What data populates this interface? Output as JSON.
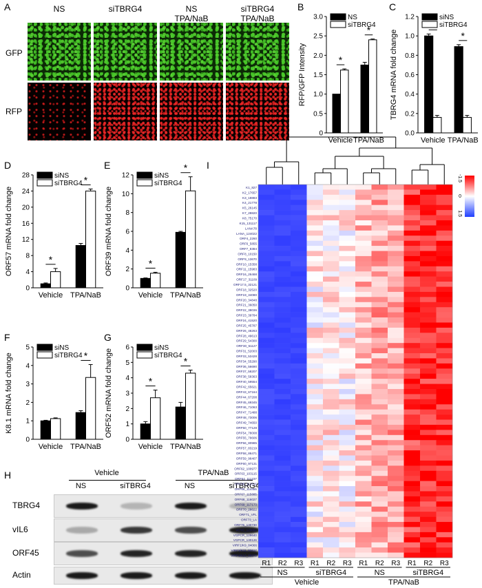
{
  "panels": {
    "A": "A",
    "B": "B",
    "C": "C",
    "D": "D",
    "E": "E",
    "F": "F",
    "G": "G",
    "H": "H",
    "I": "I"
  },
  "panel_a": {
    "columns": [
      "NS",
      "siTBRG4",
      "NS\nTPA/NaB",
      "siTBRG4\nTPA/NaB"
    ],
    "rows": [
      "GFP",
      "RFP"
    ]
  },
  "chart_data": [
    {
      "id": "B",
      "type": "bar",
      "categories": [
        "Vehicle",
        "TPA/NaB"
      ],
      "ylabel": "RFP/GFP Intensity",
      "ylim": [
        0,
        3.0
      ],
      "yticks": [
        0,
        0.5,
        1.0,
        1.5,
        2.0,
        2.5,
        3.0
      ],
      "ytick_labels": [
        "0",
        "0.5",
        "1.0",
        "1.5",
        "2.0",
        "2.5",
        "3.0"
      ],
      "legend": "top-left",
      "series": [
        {
          "name": "NS",
          "color": "#000000",
          "values": [
            1.0,
            1.75
          ],
          "errors": [
            0,
            0.07
          ]
        },
        {
          "name": "siTBRG4",
          "color": "#ffffff",
          "values": [
            1.62,
            2.4
          ],
          "errors": [
            0.03,
            0.02
          ]
        }
      ],
      "sig": [
        "*",
        "*"
      ]
    },
    {
      "id": "C",
      "type": "bar",
      "categories": [
        "Vehicle",
        "TPA/NaB"
      ],
      "ylabel": "TBRG4 mRNA fold change",
      "ylim": [
        0,
        1.2
      ],
      "yticks": [
        0,
        0.2,
        0.4,
        0.6,
        0.8,
        1.0,
        1.2
      ],
      "ytick_labels": [
        "0.0",
        "0.2",
        "0.4",
        "0.6",
        "0.8",
        "1.0",
        "1.2"
      ],
      "legend": "top-left",
      "series": [
        {
          "name": "siNS",
          "color": "#000000",
          "values": [
            1.0,
            0.89
          ],
          "errors": [
            0.02,
            0.02
          ]
        },
        {
          "name": "siTBRG4",
          "color": "#ffffff",
          "values": [
            0.16,
            0.16
          ],
          "errors": [
            0.02,
            0.02
          ]
        }
      ],
      "sig": [
        "*",
        "*"
      ]
    },
    {
      "id": "D",
      "type": "bar",
      "categories": [
        "Vehicle",
        "TPA/NaB"
      ],
      "ylabel": "ORF57 mRNA fold change",
      "ylim": [
        0,
        28
      ],
      "yticks": [
        0,
        4,
        8,
        12,
        16,
        20,
        24,
        28
      ],
      "ytick_labels": [
        "0",
        "4",
        "8",
        "12",
        "16",
        "20",
        "24",
        "28"
      ],
      "legend": "top-left",
      "series": [
        {
          "name": "siNS",
          "color": "#000000",
          "values": [
            1.0,
            10.5
          ],
          "errors": [
            0.2,
            0.5
          ]
        },
        {
          "name": "siTBRG4",
          "color": "#ffffff",
          "values": [
            4.0,
            24.0
          ],
          "errors": [
            0.8,
            0.5
          ]
        }
      ],
      "sig": [
        "*",
        "*"
      ]
    },
    {
      "id": "E",
      "type": "bar",
      "categories": [
        "Vehicle",
        "TPA/NaB"
      ],
      "ylabel": "ORF39 mRNA fold change",
      "ylim": [
        0,
        12
      ],
      "yticks": [
        0,
        2,
        4,
        6,
        8,
        10,
        12
      ],
      "ytick_labels": [
        "0",
        "2",
        "4",
        "6",
        "8",
        "10",
        "12"
      ],
      "legend": "top-left",
      "series": [
        {
          "name": "siNS",
          "color": "#000000",
          "values": [
            1.0,
            5.9
          ],
          "errors": [
            0.05,
            0.1
          ]
        },
        {
          "name": "siTBRG4",
          "color": "#ffffff",
          "values": [
            1.55,
            10.3
          ],
          "errors": [
            0.1,
            1.5
          ]
        }
      ],
      "sig": [
        "*",
        "*"
      ]
    },
    {
      "id": "F",
      "type": "bar",
      "categories": [
        "Vehicle",
        "TPA/NaB"
      ],
      "ylabel": "K8.1 mRNA fold change",
      "ylim": [
        0,
        5
      ],
      "yticks": [
        0,
        1,
        2,
        3,
        4,
        5
      ],
      "ytick_labels": [
        "0",
        "1",
        "2",
        "3",
        "4",
        "5"
      ],
      "legend": "top-left",
      "series": [
        {
          "name": "siNS",
          "color": "#000000",
          "values": [
            1.0,
            1.45
          ],
          "errors": [
            0.03,
            0.1
          ]
        },
        {
          "name": "siTBRG4",
          "color": "#ffffff",
          "values": [
            1.12,
            3.35
          ],
          "errors": [
            0.04,
            0.7
          ]
        }
      ],
      "sig": [
        "",
        "*"
      ]
    },
    {
      "id": "G",
      "type": "bar",
      "categories": [
        "Vehicle",
        "TPA/NaB"
      ],
      "ylabel": "ORF52 mRNA fold change",
      "ylim": [
        0,
        6
      ],
      "yticks": [
        0,
        1,
        2,
        3,
        4,
        5,
        6
      ],
      "ytick_labels": [
        "0",
        "1",
        "2",
        "3",
        "4",
        "5",
        "6"
      ],
      "legend": "top-left",
      "series": [
        {
          "name": "siNS",
          "color": "#000000",
          "values": [
            1.0,
            2.1
          ],
          "errors": [
            0.15,
            0.3
          ]
        },
        {
          "name": "siTBRG4",
          "color": "#ffffff",
          "values": [
            2.7,
            4.3
          ],
          "errors": [
            0.5,
            0.2
          ]
        }
      ],
      "sig": [
        "*",
        "*"
      ]
    }
  ],
  "panel_h": {
    "groups": [
      "Vehicle",
      "TPA/NaB"
    ],
    "lanes": [
      "NS",
      "siTBRG4",
      "NS",
      "siTBRG4"
    ],
    "rows": [
      {
        "label": "TBRG4",
        "intensity": [
          1.0,
          0.25,
          1.0,
          0.25
        ]
      },
      {
        "label": "vIL6",
        "intensity": [
          0.3,
          0.85,
          0.75,
          1.0
        ]
      },
      {
        "label": "ORF45",
        "intensity": [
          0.75,
          0.95,
          0.95,
          1.0
        ]
      },
      {
        "label": "Actin",
        "intensity": [
          1.0,
          1.0,
          1.0,
          1.0
        ]
      }
    ]
  },
  "panel_i": {
    "scale_top": "-1.5",
    "scale_mid": "0",
    "scale_bottom": "1.5",
    "columns": [
      "R1",
      "R2",
      "R3",
      "R1",
      "R2",
      "R3",
      "R1",
      "R2",
      "R3",
      "R1",
      "R2",
      "R3"
    ],
    "sub_groups": [
      "NS",
      "siTBRG4",
      "NS",
      "siTBRG4"
    ],
    "groups": [
      "Vehicle",
      "TPA/NaB"
    ],
    "genes": [
      "K1_827",
      "K2_17657",
      "K3_18883",
      "K4_21778",
      "K5_26145",
      "K7_28820",
      "K8_75170",
      "K15_131117",
      "LANA78",
      "LANA_124022",
      "ORF4_2260",
      "ORF6_5855",
      "ORF7_8384",
      "ORF8_10150",
      "ORF9_13670",
      "ORF10_15358",
      "ORF11_15983",
      "ORF16_26468",
      "ORF17_31109",
      "ORF17.5_32121",
      "ORF18_32520",
      "ORF19_34080",
      "ORF20_34848",
      "ORF21_36050",
      "ORF22_38036",
      "ORF23_39784",
      "ORF24_41520",
      "ORF25_45787",
      "ORF26_48263",
      "ORF28_49613",
      "ORF29_54300",
      "ORF30_51127",
      "ORF31_52003",
      "ORF33_53428",
      "ORF34_55290",
      "ORF36_56690",
      "ORF37_58207",
      "ORF38_58363",
      "ORF40_59554",
      "ORF42_65621",
      "ORF43_67164",
      "ORF44_67208",
      "ORF45_69345",
      "ORF46_71063",
      "ORF47_71488",
      "ORF48_73006",
      "ORF49_74650",
      "ORF50_77128",
      "ORF54_78008",
      "ORF55_79606",
      "ORF56_80985",
      "ORF57_83219",
      "ORF58_86471",
      "ORF59_96407",
      "ORF60_97131",
      "ORF62_100977",
      "ORF63_103115",
      "ORF64_111237",
      "ORF65_112316",
      "ORF66_114455",
      "ORF67_115885",
      "ORF68_116027",
      "ORF69_117173",
      "ORF70_28622",
      "ORF71_VFL",
      "ORF73_LA",
      "ORF75_130730",
      "VCYC_123054",
      "VGPCR_129640",
      "VGPCR_130126",
      "VIRF1/K9_84066",
      "VIRF2/K11_92617",
      "VIRF4/K10_86970"
    ]
  }
}
